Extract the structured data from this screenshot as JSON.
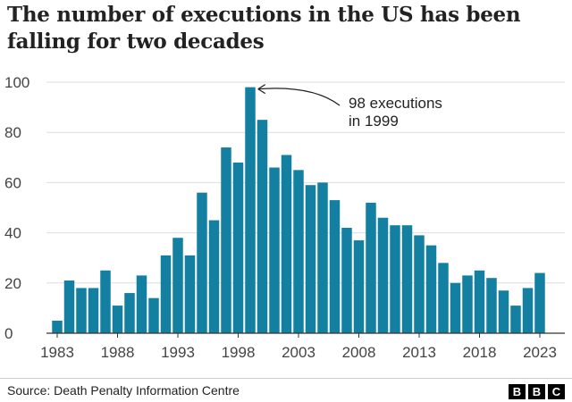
{
  "title": "The number of executions in the US has been falling for two decades",
  "source": "Source: Death Penalty Information Centre",
  "logo": [
    "B",
    "B",
    "C"
  ],
  "chart_data": {
    "type": "bar",
    "title": "The number of executions in the US has been falling for two decades",
    "xlabel": "",
    "ylabel": "",
    "ylim": [
      0,
      100
    ],
    "yticks": [
      0,
      20,
      40,
      60,
      80,
      100
    ],
    "xticks": [
      "1983",
      "1988",
      "1993",
      "1998",
      "2003",
      "2008",
      "2013",
      "2018",
      "2023"
    ],
    "grid": true,
    "bar_color": "#1380A1",
    "categories": [
      "1983",
      "1984",
      "1985",
      "1986",
      "1987",
      "1988",
      "1989",
      "1990",
      "1991",
      "1992",
      "1993",
      "1994",
      "1995",
      "1996",
      "1997",
      "1998",
      "1999",
      "2000",
      "2001",
      "2002",
      "2003",
      "2004",
      "2005",
      "2006",
      "2007",
      "2008",
      "2009",
      "2010",
      "2011",
      "2012",
      "2013",
      "2014",
      "2015",
      "2016",
      "2017",
      "2018",
      "2019",
      "2020",
      "2021",
      "2022",
      "2023"
    ],
    "values": [
      5,
      21,
      18,
      18,
      25,
      11,
      16,
      23,
      14,
      31,
      38,
      31,
      56,
      45,
      74,
      68,
      98,
      85,
      66,
      71,
      65,
      59,
      60,
      53,
      42,
      37,
      52,
      46,
      43,
      43,
      39,
      35,
      28,
      20,
      23,
      25,
      22,
      17,
      11,
      18,
      24
    ],
    "annotation": {
      "lines": [
        "98 executions",
        "in 1999"
      ],
      "target": "1999"
    }
  }
}
